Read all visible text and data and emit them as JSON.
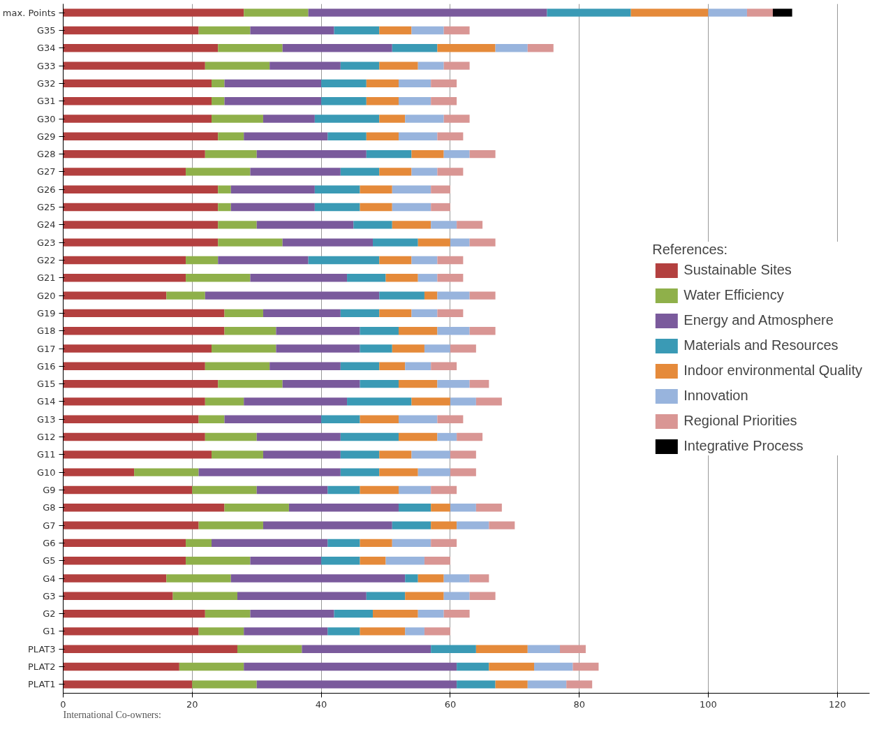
{
  "chart_data": {
    "type": "bar",
    "orientation": "horizontal",
    "stacked": true,
    "categories": [
      "max. Points",
      "G35",
      "G34",
      "G33",
      "G32",
      "G31",
      "G30",
      "G29",
      "G28",
      "G27",
      "G26",
      "G25",
      "G24",
      "G23",
      "G22",
      "G21",
      "G20",
      "G19",
      "G18",
      "G17",
      "G16",
      "G15",
      "G14",
      "G13",
      "G12",
      "G11",
      "G10",
      "G9",
      "G8",
      "G7",
      "G6",
      "G5",
      "G4",
      "G3",
      "G2",
      "G1",
      "PLAT3",
      "PLAT2",
      "PLAT1"
    ],
    "series": [
      {
        "name": "Sustainable Sites",
        "color": "#b3403f",
        "values": [
          28,
          21,
          24,
          22,
          23,
          23,
          23,
          24,
          22,
          19,
          24,
          24,
          24,
          24,
          19,
          19,
          16,
          25,
          25,
          23,
          22,
          24,
          22,
          21,
          22,
          23,
          11,
          20,
          25,
          21,
          19,
          19,
          16,
          17,
          22,
          21,
          27,
          18,
          20
        ]
      },
      {
        "name": "Water Efficiency",
        "color": "#8fb04a",
        "values": [
          10,
          8,
          10,
          10,
          2,
          2,
          8,
          4,
          8,
          10,
          2,
          2,
          6,
          10,
          5,
          10,
          6,
          6,
          8,
          10,
          10,
          10,
          6,
          4,
          8,
          8,
          10,
          10,
          10,
          10,
          4,
          10,
          10,
          10,
          7,
          7,
          10,
          10,
          10
        ]
      },
      {
        "name": "Energy and Atmosphere",
        "color": "#7a5a9c",
        "values": [
          37,
          13,
          17,
          11,
          15,
          15,
          8,
          13,
          17,
          14,
          13,
          13,
          15,
          14,
          14,
          15,
          27,
          12,
          13,
          13,
          11,
          12,
          16,
          15,
          13,
          12,
          22,
          11,
          17,
          20,
          18,
          11,
          27,
          20,
          13,
          13,
          20,
          33,
          31
        ]
      },
      {
        "name": "Materials and Resources",
        "color": "#3a9ab5",
        "values": [
          13,
          7,
          7,
          6,
          7,
          7,
          10,
          6,
          7,
          6,
          7,
          7,
          6,
          7,
          11,
          6,
          7,
          6,
          6,
          5,
          6,
          6,
          10,
          6,
          9,
          6,
          6,
          5,
          5,
          6,
          5,
          6,
          2,
          6,
          6,
          5,
          7,
          5,
          6
        ]
      },
      {
        "name": "Indoor environmental Quality",
        "color": "#e58a3a",
        "values": [
          12,
          5,
          9,
          6,
          5,
          5,
          4,
          5,
          5,
          5,
          5,
          5,
          6,
          5,
          5,
          5,
          2,
          5,
          6,
          5,
          4,
          6,
          6,
          6,
          6,
          5,
          6,
          6,
          3,
          4,
          5,
          4,
          4,
          6,
          7,
          7,
          8,
          7,
          5
        ]
      },
      {
        "name": "Innovation",
        "color": "#98b4dd",
        "values": [
          6,
          5,
          5,
          4,
          5,
          5,
          6,
          6,
          4,
          4,
          6,
          6,
          4,
          3,
          4,
          3,
          5,
          4,
          5,
          4,
          4,
          5,
          4,
          6,
          3,
          6,
          5,
          5,
          4,
          5,
          6,
          6,
          4,
          4,
          4,
          3,
          5,
          6,
          6
        ]
      },
      {
        "name": "Regional Priorities",
        "color": "#d99694",
        "values": [
          4,
          4,
          4,
          4,
          4,
          4,
          4,
          4,
          4,
          4,
          3,
          3,
          4,
          4,
          4,
          4,
          4,
          4,
          4,
          4,
          4,
          3,
          4,
          4,
          4,
          4,
          4,
          4,
          4,
          4,
          4,
          4,
          3,
          4,
          4,
          4,
          4,
          4,
          4
        ]
      },
      {
        "name": "Integrative Process",
        "color": "#000000",
        "values": [
          3,
          0,
          0,
          0,
          0,
          0,
          0,
          0,
          0,
          0,
          0,
          0,
          0,
          0,
          0,
          0,
          0,
          0,
          0,
          0,
          0,
          0,
          0,
          0,
          0,
          0,
          0,
          0,
          0,
          0,
          0,
          0,
          0,
          0,
          0,
          0,
          0,
          0,
          0
        ]
      }
    ],
    "xlim": [
      0,
      125
    ],
    "xticks": [
      0,
      20,
      40,
      60,
      80,
      100,
      120
    ],
    "grid": "x",
    "legend": "right",
    "legend_title": "References:",
    "annotations": [
      "International Co-owners:"
    ]
  }
}
